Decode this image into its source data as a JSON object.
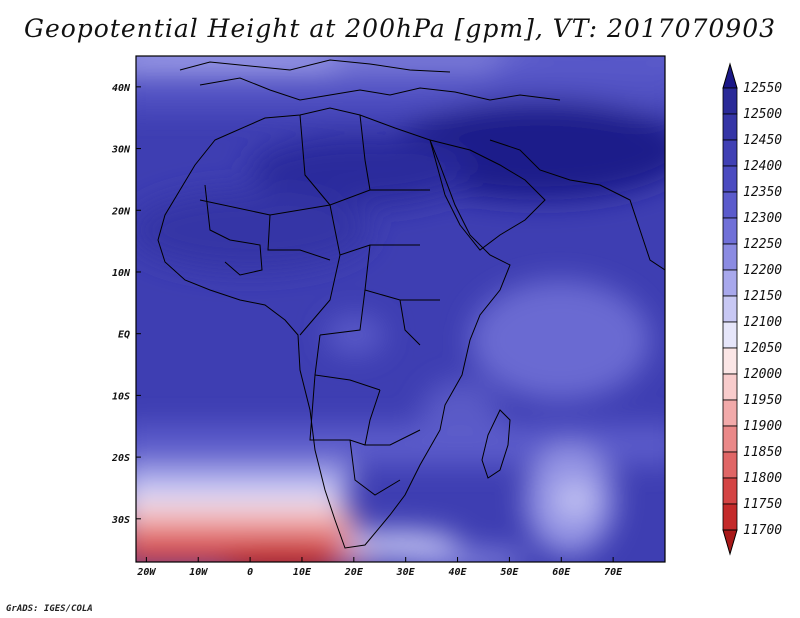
{
  "title": "Geopotential Height at 200hPa [gpm], VT: 2017070903",
  "footer": "GrADS: IGES/COLA",
  "map": {
    "lat_labels": [
      "40N",
      "30N",
      "20N",
      "10N",
      "EQ",
      "10S",
      "20S",
      "30S"
    ],
    "lat_values": [
      40,
      30,
      20,
      10,
      0,
      -10,
      -20,
      -30
    ],
    "lon_labels": [
      "20W",
      "10W",
      "0",
      "10E",
      "20E",
      "30E",
      "40E",
      "50E",
      "60E",
      "70E"
    ],
    "lon_values": [
      -20,
      -10,
      0,
      10,
      20,
      30,
      40,
      50,
      60,
      70
    ],
    "lon_range": [
      -22,
      80
    ],
    "lat_range": [
      -37,
      45
    ]
  },
  "colorbar": {
    "levels": [
      "12550",
      "12500",
      "12450",
      "12400",
      "12350",
      "12300",
      "12250",
      "12200",
      "12150",
      "12100",
      "12050",
      "12000",
      "11950",
      "11900",
      "11850",
      "11800",
      "11750",
      "11700"
    ],
    "colors": [
      "#1b1887",
      "#2a2a98",
      "#3535a6",
      "#4040b4",
      "#4b4bc0",
      "#5b5bcc",
      "#7070d8",
      "#8b8be2",
      "#a8a8ec",
      "#c8c8f4",
      "#e6e6fa",
      "#fbe6e6",
      "#f8cccc",
      "#f2aaaa",
      "#ea8888",
      "#e06666",
      "#d44444",
      "#c42a2a",
      "#a81818"
    ]
  }
}
